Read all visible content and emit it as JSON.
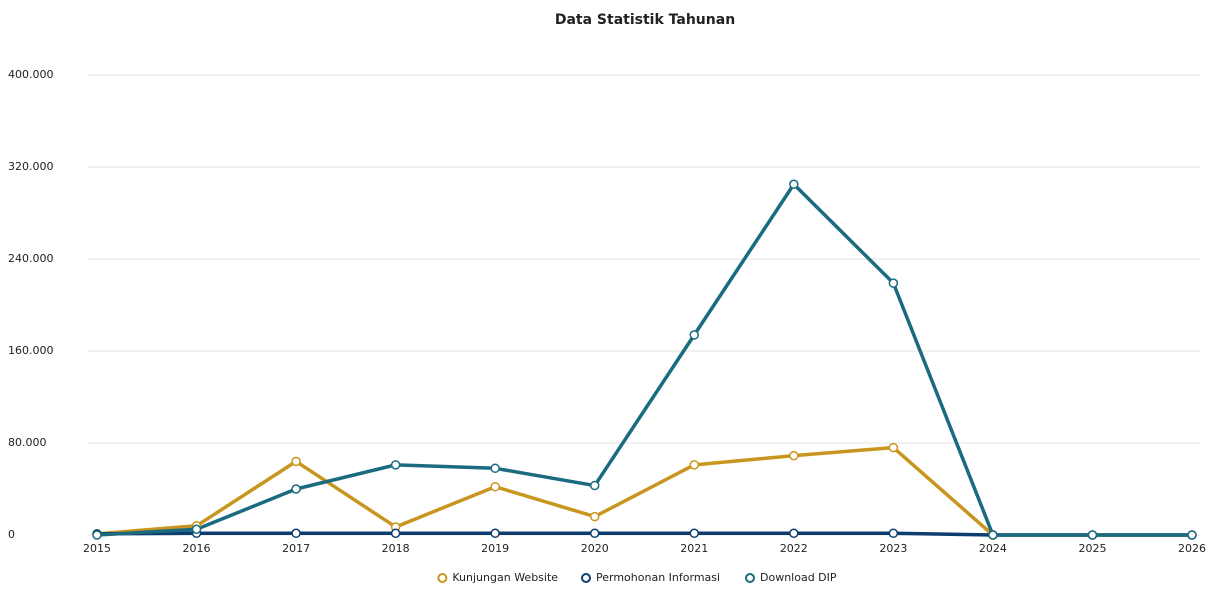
{
  "chart_data": {
    "type": "line",
    "title": "Data Statistik Tahunan",
    "categories": [
      "2015",
      "2016",
      "2017",
      "2018",
      "2019",
      "2020",
      "2021",
      "2022",
      "2023",
      "2024",
      "2025",
      "2026"
    ],
    "series": [
      {
        "name": "Kunjungan Website",
        "color": "#c8961e",
        "values": [
          1000,
          8000,
          64000,
          7000,
          42000,
          16000,
          61000,
          69000,
          76000,
          0,
          0,
          0
        ]
      },
      {
        "name": "Permohonan Informasi",
        "color": "#0d3c6e",
        "values": [
          1000,
          1500,
          1500,
          1500,
          1500,
          1500,
          1500,
          1500,
          1500,
          0,
          0,
          0
        ]
      },
      {
        "name": "Download DIP",
        "color": "#1a6a80",
        "values": [
          0,
          5000,
          40000,
          61000,
          58000,
          43000,
          174000,
          305000,
          219000,
          0,
          0,
          0
        ]
      }
    ],
    "ylim": [
      0,
      400000
    ],
    "yticks": [
      0,
      {
        "value": 80000,
        "label": "80.000"
      },
      {
        "value": 160000,
        "label": "160.000"
      },
      {
        "value": 240000,
        "label": "240.000"
      },
      {
        "value": 320000,
        "label": "320.000"
      },
      {
        "value": 400000,
        "label": "400.000"
      }
    ],
    "grid": true,
    "legend": "bottom"
  }
}
